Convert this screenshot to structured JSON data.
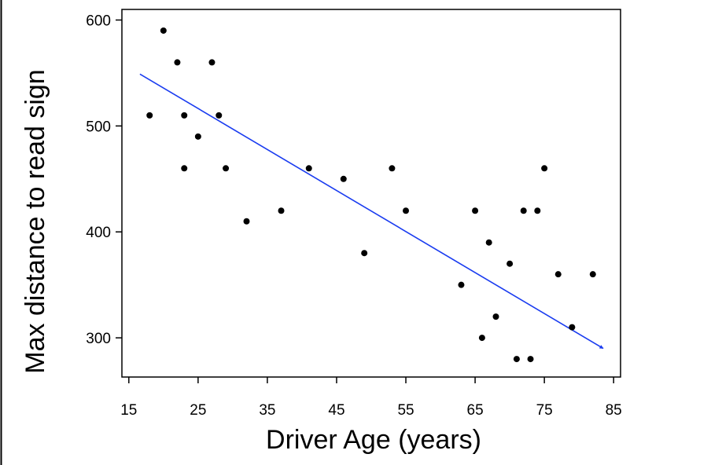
{
  "chart_data": {
    "type": "scatter",
    "title": "",
    "xlabel": "Driver Age (years)",
    "ylabel": "Max distance to read sign",
    "xlim": [
      14,
      86
    ],
    "ylim": [
      263,
      610
    ],
    "xticks": [
      15,
      25,
      35,
      45,
      55,
      65,
      75,
      85
    ],
    "yticks": [
      300,
      400,
      500,
      600
    ],
    "grid": false,
    "legend": "none",
    "point_color": "#000000",
    "arrow_color": "#1a3cf0",
    "points": [
      {
        "x": 18,
        "y": 510
      },
      {
        "x": 20,
        "y": 590
      },
      {
        "x": 22,
        "y": 560
      },
      {
        "x": 23,
        "y": 510
      },
      {
        "x": 23,
        "y": 460
      },
      {
        "x": 25,
        "y": 490
      },
      {
        "x": 27,
        "y": 560
      },
      {
        "x": 28,
        "y": 510
      },
      {
        "x": 29,
        "y": 460
      },
      {
        "x": 32,
        "y": 410
      },
      {
        "x": 37,
        "y": 420
      },
      {
        "x": 41,
        "y": 460
      },
      {
        "x": 46,
        "y": 450
      },
      {
        "x": 49,
        "y": 380
      },
      {
        "x": 53,
        "y": 460
      },
      {
        "x": 55,
        "y": 420
      },
      {
        "x": 63,
        "y": 350
      },
      {
        "x": 65,
        "y": 420
      },
      {
        "x": 66,
        "y": 300
      },
      {
        "x": 67,
        "y": 390
      },
      {
        "x": 68,
        "y": 320
      },
      {
        "x": 70,
        "y": 370
      },
      {
        "x": 71,
        "y": 280
      },
      {
        "x": 72,
        "y": 420
      },
      {
        "x": 73,
        "y": 280
      },
      {
        "x": 74,
        "y": 420
      },
      {
        "x": 75,
        "y": 460
      },
      {
        "x": 77,
        "y": 360
      },
      {
        "x": 79,
        "y": 310
      },
      {
        "x": 82,
        "y": 360
      }
    ],
    "trend_arrow": {
      "from": {
        "x": 16.6,
        "y": 549
      },
      "to": {
        "x": 83.5,
        "y": 290
      }
    }
  }
}
